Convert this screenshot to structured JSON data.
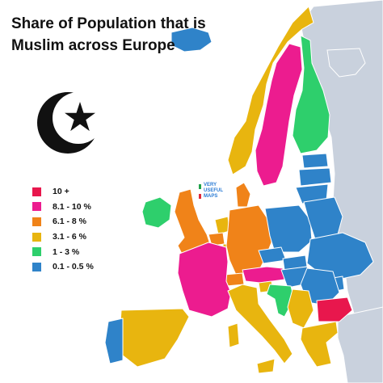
{
  "title": "Share of Population that is Muslim across Europe",
  "watermark": "VERY USEFUL MAPS",
  "symbol_icon": "star-and-crescent-icon",
  "legend": [
    {
      "label": "10 +",
      "color": "#e8174d"
    },
    {
      "label": "8.1 - 10 %",
      "color": "#ec1c8f"
    },
    {
      "label": "6.1 - 8 %",
      "color": "#f08319"
    },
    {
      "label": "3.1 - 6 %",
      "color": "#e8b50f"
    },
    {
      "label": "1 - 3 %",
      "color": "#2ecf6c"
    },
    {
      "label": "0.1 - 0.5 %",
      "color": "#2f83c9"
    }
  ],
  "colors": {
    "sea": "#ffffff",
    "land_no_data": "#c9d1dd",
    "border": "#ffffff"
  },
  "countries": [
    {
      "name": "Iceland",
      "category": "0.1 - 0.5 %"
    },
    {
      "name": "Ireland",
      "category": "1 - 3 %"
    },
    {
      "name": "United Kingdom",
      "category": "6.1 - 8 %"
    },
    {
      "name": "Norway",
      "category": "3.1 - 6 %"
    },
    {
      "name": "Sweden",
      "category": "8.1 - 10 %"
    },
    {
      "name": "Finland",
      "category": "1 - 3 %"
    },
    {
      "name": "Estonia",
      "category": "0.1 - 0.5 %"
    },
    {
      "name": "Latvia",
      "category": "0.1 - 0.5 %"
    },
    {
      "name": "Lithuania",
      "category": "0.1 - 0.5 %"
    },
    {
      "name": "Denmark",
      "category": "6.1 - 8 %"
    },
    {
      "name": "Netherlands",
      "category": "3.1 - 6 %"
    },
    {
      "name": "Belgium",
      "category": "6.1 - 8 %"
    },
    {
      "name": "Luxembourg",
      "category": "3.1 - 6 %"
    },
    {
      "name": "Germany",
      "category": "6.1 - 8 %"
    },
    {
      "name": "Poland",
      "category": "0.1 - 0.5 %"
    },
    {
      "name": "Belarus",
      "category": "0.1 - 0.5 %"
    },
    {
      "name": "Ukraine",
      "category": "0.1 - 0.5 %"
    },
    {
      "name": "France",
      "category": "8.1 - 10 %"
    },
    {
      "name": "Switzerland",
      "category": "6.1 - 8 %"
    },
    {
      "name": "Austria",
      "category": "8.1 - 10 %"
    },
    {
      "name": "Czechia",
      "category": "0.1 - 0.5 %"
    },
    {
      "name": "Slovakia",
      "category": "0.1 - 0.5 %"
    },
    {
      "name": "Hungary",
      "category": "0.1 - 0.5 %"
    },
    {
      "name": "Slovenia",
      "category": "3.1 - 6 %"
    },
    {
      "name": "Croatia",
      "category": "1 - 3 %"
    },
    {
      "name": "Serbia",
      "category": "3.1 - 6 %"
    },
    {
      "name": "Romania",
      "category": "0.1 - 0.5 %"
    },
    {
      "name": "Moldova",
      "category": "0.1 - 0.5 %"
    },
    {
      "name": "Bulgaria",
      "category": "10 +"
    },
    {
      "name": "Greece",
      "category": "3.1 - 6 %"
    },
    {
      "name": "Italy",
      "category": "3.1 - 6 %"
    },
    {
      "name": "Spain",
      "category": "3.1 - 6 %"
    },
    {
      "name": "Portugal",
      "category": "0.1 - 0.5 %"
    }
  ]
}
